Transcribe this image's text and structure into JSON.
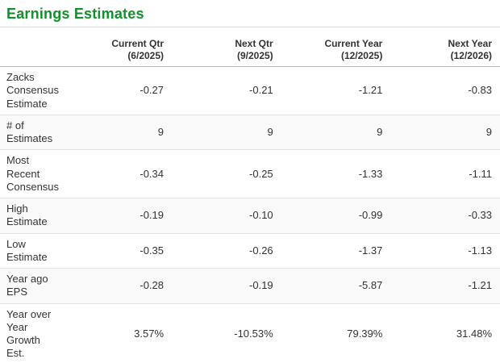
{
  "title": "Earnings Estimates",
  "colors": {
    "accent_green": "#0f9229",
    "text": "#333333",
    "alt_row_bg": "#f9f9f9",
    "header_rule": "#b9b9b9",
    "row_rule": "#e4e4e4"
  },
  "table": {
    "columns": [
      {
        "label": "Current Qtr",
        "sublabel": "(6/2025)"
      },
      {
        "label": "Next Qtr",
        "sublabel": "(9/2025)"
      },
      {
        "label": "Current Year",
        "sublabel": "(12/2025)"
      },
      {
        "label": "Next Year",
        "sublabel": "(12/2026)"
      }
    ],
    "rows": [
      {
        "label": "Zacks Consensus Estimate",
        "values": [
          "-0.27",
          "-0.21",
          "-1.21",
          "-0.83"
        ]
      },
      {
        "label": "# of Estimates",
        "values": [
          "9",
          "9",
          "9",
          "9"
        ]
      },
      {
        "label": "Most Recent Consensus",
        "values": [
          "-0.34",
          "-0.25",
          "-1.33",
          "-1.11"
        ]
      },
      {
        "label": "High Estimate",
        "values": [
          "-0.19",
          "-0.10",
          "-0.99",
          "-0.33"
        ]
      },
      {
        "label": "Low Estimate",
        "values": [
          "-0.35",
          "-0.26",
          "-1.37",
          "-1.13"
        ]
      },
      {
        "label": "Year ago EPS",
        "values": [
          "-0.28",
          "-0.19",
          "-5.87",
          "-1.21"
        ]
      },
      {
        "label": "Year over Year Growth Est.",
        "values": [
          "3.57%",
          "-10.53%",
          "79.39%",
          "31.48%"
        ]
      }
    ]
  },
  "chart_data": {
    "type": "table",
    "title": "Earnings Estimates",
    "columns": [
      "",
      "Current Qtr (6/2025)",
      "Next Qtr (9/2025)",
      "Current Year (12/2025)",
      "Next Year (12/2026)"
    ],
    "rows": [
      [
        "Zacks Consensus Estimate",
        -0.27,
        -0.21,
        -1.21,
        -0.83
      ],
      [
        "# of Estimates",
        9,
        9,
        9,
        9
      ],
      [
        "Most Recent Consensus",
        -0.34,
        -0.25,
        -1.33,
        -1.11
      ],
      [
        "High Estimate",
        -0.19,
        -0.1,
        -0.99,
        -0.33
      ],
      [
        "Low Estimate",
        -0.35,
        -0.26,
        -1.37,
        -1.13
      ],
      [
        "Year ago EPS",
        -0.28,
        -0.19,
        -5.87,
        -1.21
      ],
      [
        "Year over Year Growth Est.",
        "3.57%",
        "-10.53%",
        "79.39%",
        "31.48%"
      ]
    ]
  }
}
